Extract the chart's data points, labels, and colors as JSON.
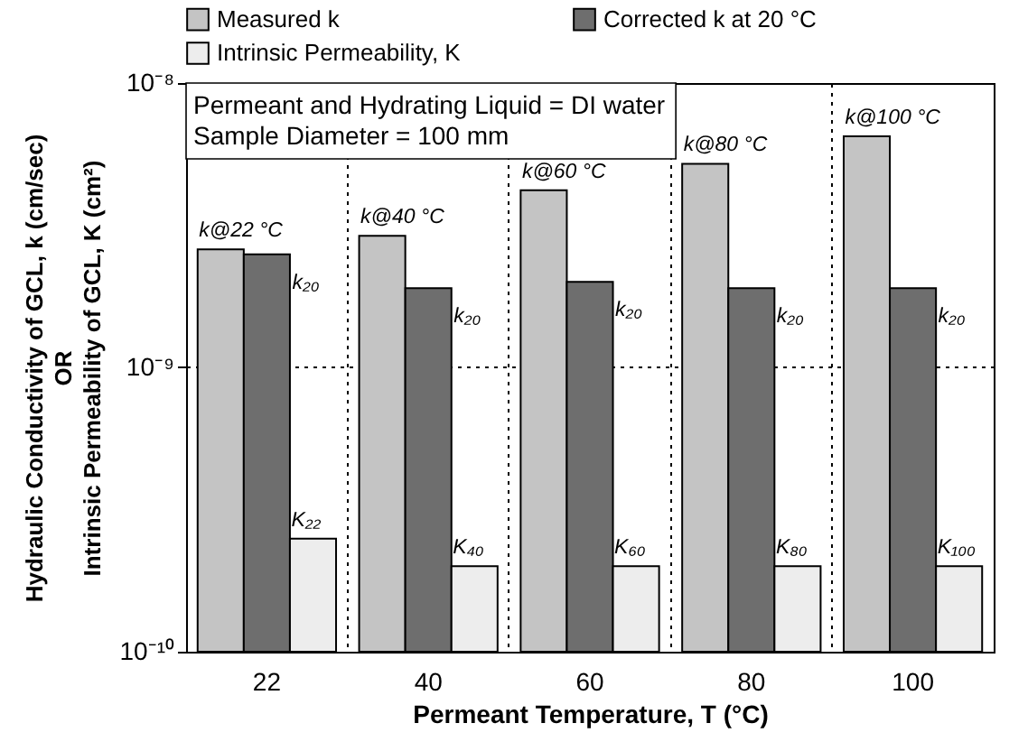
{
  "chart_data": {
    "type": "bar",
    "categories": [
      "22",
      "40",
      "60",
      "80",
      "100"
    ],
    "xlabel": "Permeant Temperature, T (°C)",
    "ylabel": "Hydraulic Conductivity of GCL, k (cm/sec)\nOR\nIntrinsic Permeability of GCL, K (cm²)",
    "series": [
      {
        "name": "Measured k",
        "color": "#c4c4c4",
        "values": [
          2.6e-09,
          2.9e-09,
          4.2e-09,
          5.2e-09,
          6.5e-09
        ]
      },
      {
        "name": "Corrected k at 20 °C",
        "color": "#6e6e6e",
        "values": [
          2.5e-09,
          1.9e-09,
          2e-09,
          1.9e-09,
          1.9e-09
        ]
      },
      {
        "name": "Intrinsic Permeability, K",
        "color": "#ededed",
        "values": [
          2.5e-10,
          2e-10,
          2e-10,
          2e-10,
          2e-10
        ]
      }
    ],
    "log": true,
    "ylim": [
      1e-10,
      1e-08
    ],
    "yticks": [
      {
        "value": 1e-10,
        "label": "10⁻¹⁰"
      },
      {
        "value": 1e-09,
        "label": "10⁻⁹"
      },
      {
        "value": 1e-08,
        "label": "10⁻⁸"
      }
    ],
    "grid": true,
    "legend": "top",
    "annotations": [
      "Permeant and Hydrating Liquid = DI water",
      "Sample Diameter = 100 mm",
      "k@22 °C",
      "k₂₀",
      "K₂₂",
      "k@40 °C",
      "k₂₀",
      "K₄₀",
      "k@60 °C",
      "k₂₀",
      "K₆₀",
      "k@80 °C",
      "k₂₀",
      "K₈₀",
      "k@100 °C",
      "k₂₀",
      "K₁₀₀"
    ]
  }
}
